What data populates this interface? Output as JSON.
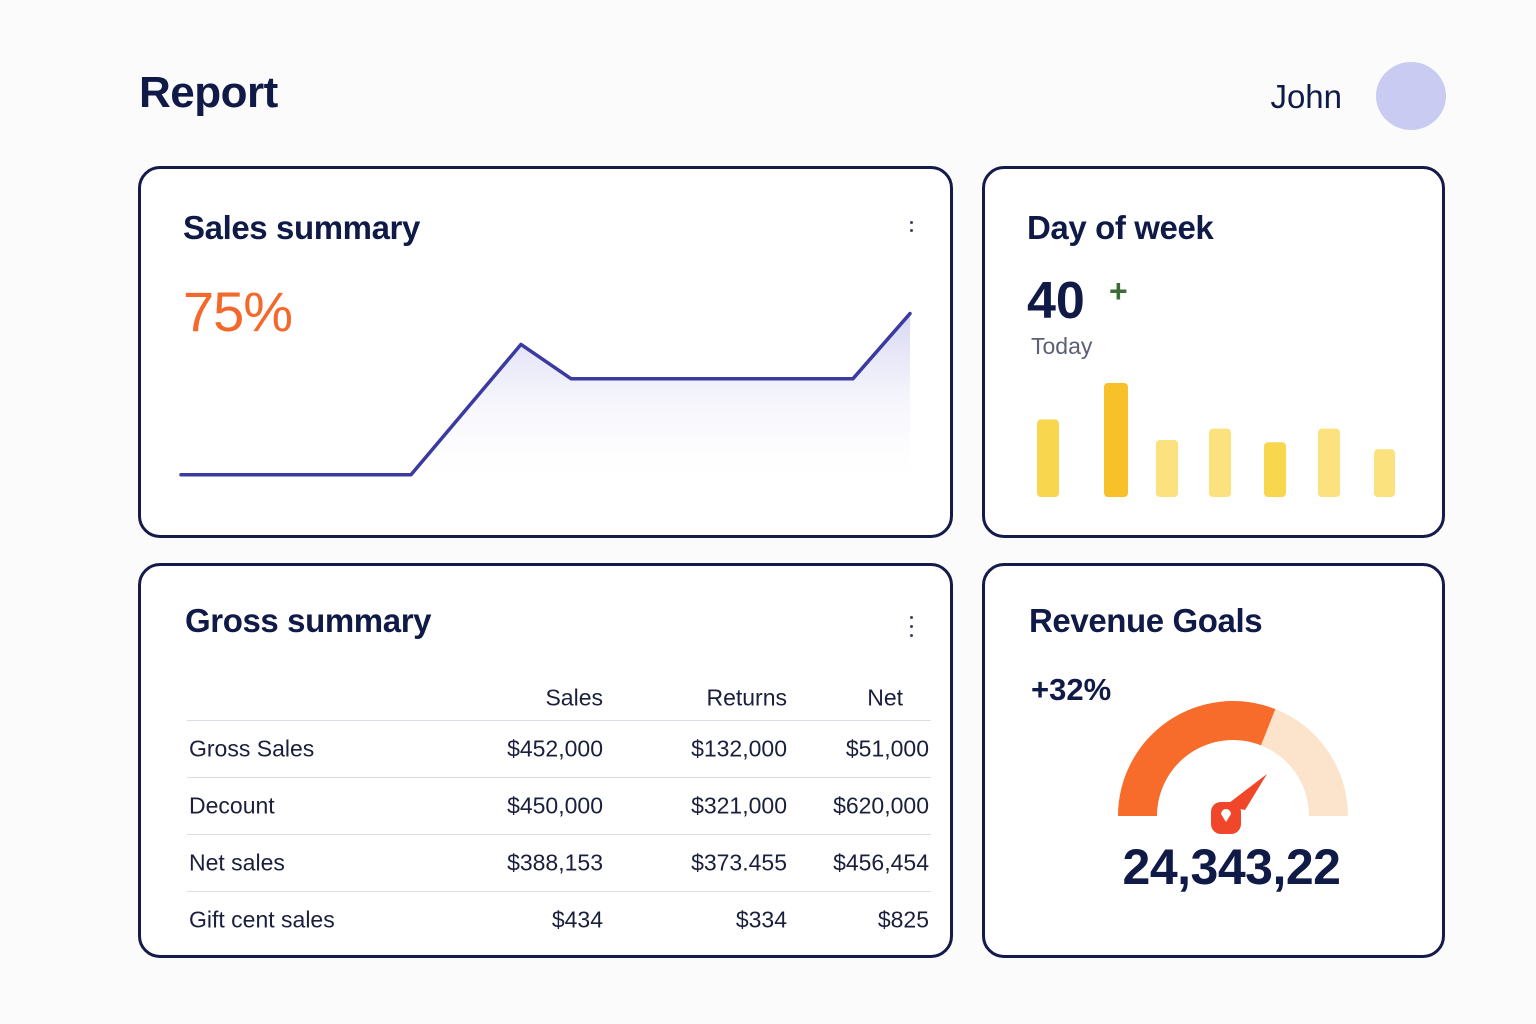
{
  "header": {
    "title": "Report",
    "user_name": "John"
  },
  "sales_summary": {
    "title": "Sales summary",
    "value": "75%",
    "accent_color": "#f4692b",
    "line_color": "#3a3aa0",
    "menu_icon": "kebab-menu-icon"
  },
  "day_of_week": {
    "title": "Day of week",
    "value": "40",
    "delta": "+",
    "caption": "Today",
    "bar_colors": [
      "#f8d64e",
      "#f7c12a",
      "#fbe27e",
      "#fbe27e",
      "#f8d64e",
      "#fbe27e",
      "#fbe27e"
    ]
  },
  "gross_summary": {
    "title": "Gross summary",
    "menu_icon": "kebab-menu-icon",
    "columns": [
      "",
      "Sales",
      "Returns",
      "Net"
    ],
    "rows": [
      {
        "label": "Gross Sales",
        "sales": "$452,000",
        "returns": "$132,000",
        "net": "$51,000"
      },
      {
        "label": "Decount",
        "sales": "$450,000",
        "returns": "$321,000",
        "net": "$620,000"
      },
      {
        "label": "Net sales",
        "sales": "$388,153",
        "returns": "$373.455",
        "net": "$456,454"
      },
      {
        "label": "Gift cent sales",
        "sales": "$434",
        "returns": "$334",
        "net": "$825"
      }
    ]
  },
  "revenue_goals": {
    "title": "Revenue Goals",
    "delta": "+32%",
    "value": "24,343,22",
    "progress": 0.62,
    "gauge_colors": {
      "filled": "#f76b2b",
      "remaining": "#fce3cc",
      "needle": "#f0462a"
    }
  },
  "chart_data": [
    {
      "type": "area",
      "title": "Sales summary",
      "x": [
        0,
        1,
        2,
        3,
        4,
        5,
        6
      ],
      "values": [
        10,
        10,
        48,
        38,
        38,
        38,
        57
      ],
      "xlabel": "",
      "ylabel": "",
      "ylim": [
        0,
        70
      ],
      "grid": false
    },
    {
      "type": "bar",
      "title": "Day of week",
      "categories": [
        "",
        "",
        "",
        "",
        "",
        "",
        ""
      ],
      "values": [
        68,
        100,
        50,
        60,
        48,
        60,
        42
      ],
      "ylim": [
        0,
        100
      ],
      "grid": false
    }
  ]
}
